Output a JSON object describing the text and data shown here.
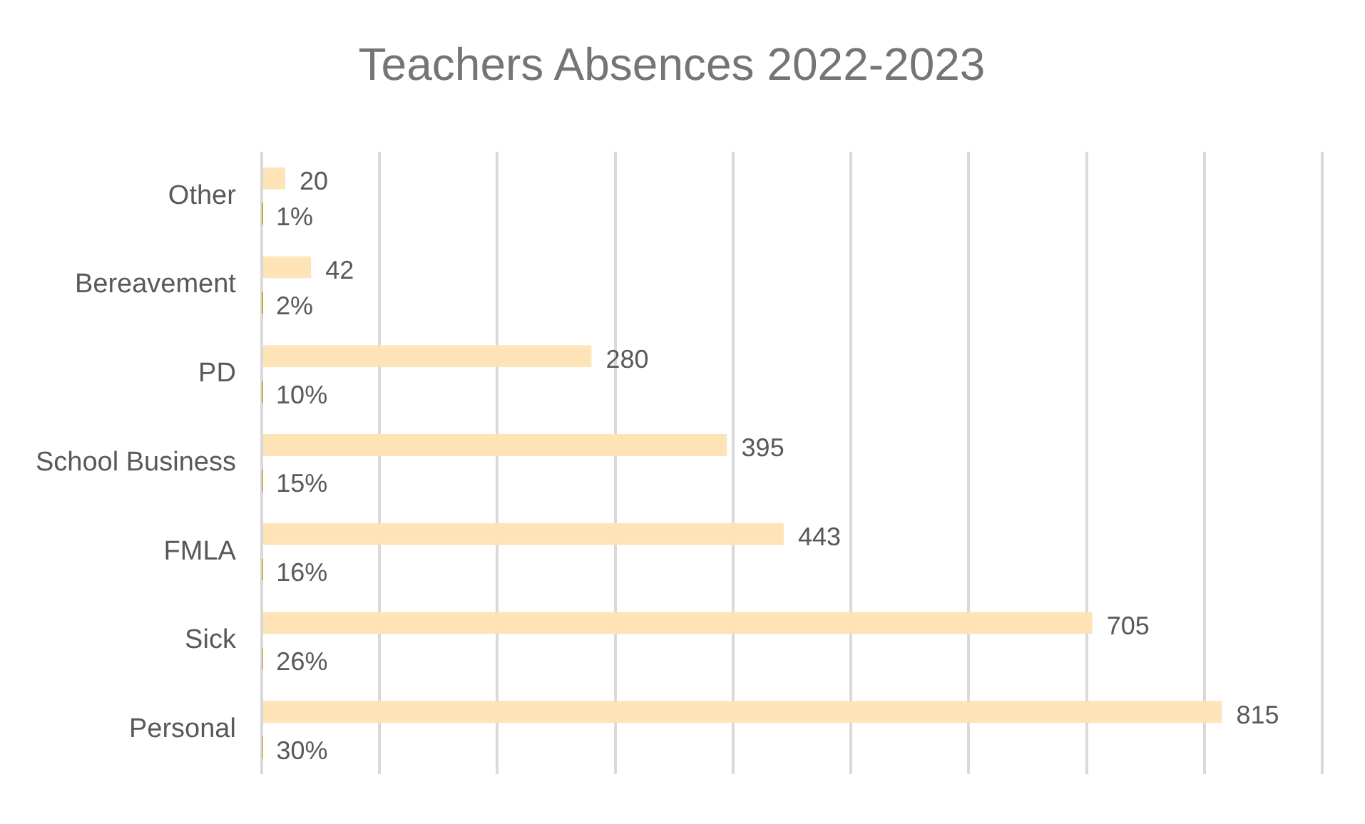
{
  "chart_data": {
    "type": "bar",
    "orientation": "horizontal",
    "title": "Teachers Absences 2022-2023",
    "categories": [
      "Other",
      "Bereavement",
      "PD",
      "School Business",
      "FMLA",
      "Sick",
      "Personal"
    ],
    "series": [
      {
        "color": "#fde3b5",
        "values": [
          20,
          42,
          280,
          395,
          443,
          705,
          815
        ],
        "value_labels": [
          "20",
          "42",
          "280",
          "395",
          "443",
          "705",
          "815"
        ]
      },
      {
        "color": "#c9a227",
        "values": [
          0.01,
          0.02,
          0.1,
          0.15,
          0.16,
          0.26,
          0.3
        ],
        "value_labels": [
          "1%",
          "2%",
          "10%",
          "15%",
          "16%",
          "26%",
          "30%"
        ]
      }
    ],
    "xlim": [
      0,
      900
    ],
    "xticks": [
      {
        "value": 0,
        "label": null
      },
      {
        "value": 100,
        "label": null
      },
      {
        "value": 200,
        "label": null
      },
      {
        "value": 300,
        "label": null
      },
      {
        "value": 400,
        "label": null
      },
      {
        "value": 500,
        "label": null
      },
      {
        "value": 600,
        "label": null
      },
      {
        "value": 700,
        "label": null
      },
      {
        "value": 800,
        "label": null
      },
      {
        "value": 900,
        "label": null
      }
    ],
    "grid": "x",
    "tick_labels": "y",
    "legend": false
  }
}
